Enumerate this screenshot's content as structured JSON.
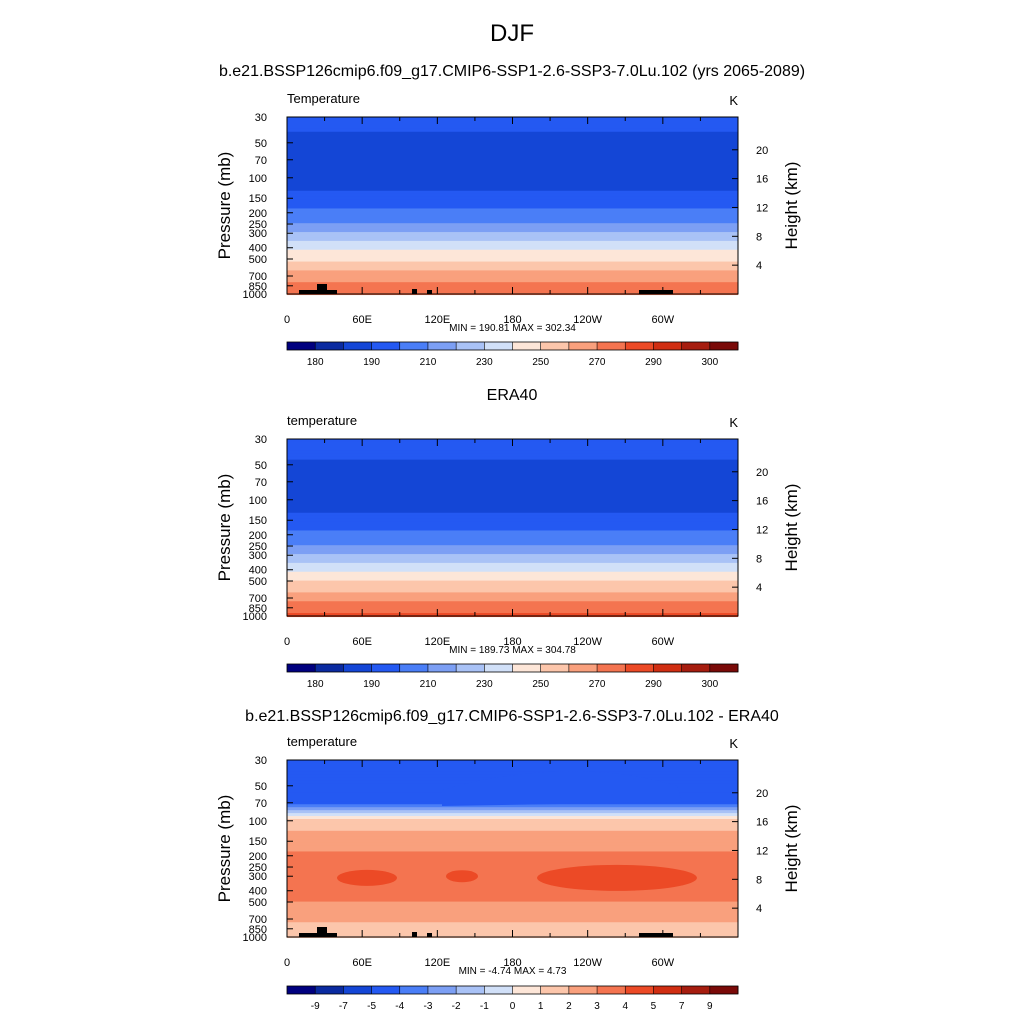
{
  "figure": {
    "title": "DJF"
  },
  "chart_data": [
    {
      "type": "heatmap",
      "title": "b.e21.BSSP126cmip6.f09_g17.CMIP6-SSP1-2.6-SSP3-7.0Lu.102 (yrs 2065-2089)",
      "left_label": "Temperature",
      "units": "K",
      "ylabel": "Pressure (mb)",
      "y2label": "Height (km)",
      "y_ticks": [
        "30",
        "50",
        "70",
        "100",
        "150",
        "200",
        "250",
        "300",
        "400",
        "500",
        "700",
        "850",
        "1000"
      ],
      "y2_ticks": [
        "20",
        "16",
        "12",
        "8",
        "4"
      ],
      "x_ticks": [
        "0",
        "60E",
        "120E",
        "180",
        "120W",
        "60W"
      ],
      "stats": "MIN = 190.81  MAX = 302.34",
      "colorbar_labels": [
        "180",
        "190",
        "210",
        "230",
        "250",
        "270",
        "290",
        "300"
      ],
      "profile_K": [
        205,
        196,
        194,
        196,
        203,
        212,
        222,
        230,
        248,
        258,
        276,
        284,
        291
      ],
      "topography": true
    },
    {
      "type": "heatmap",
      "title": "ERA40",
      "left_label": "temperature",
      "units": "K",
      "ylabel": "Pressure (mb)",
      "y2label": "Height (km)",
      "y_ticks": [
        "30",
        "50",
        "70",
        "100",
        "150",
        "200",
        "250",
        "300",
        "400",
        "500",
        "700",
        "850",
        "1000"
      ],
      "y2_ticks": [
        "20",
        "16",
        "12",
        "8",
        "4"
      ],
      "x_ticks": [
        "0",
        "60E",
        "120E",
        "180",
        "120W",
        "60W"
      ],
      "stats": "MIN = 189.73  MAX = 304.78",
      "colorbar_labels": [
        "180",
        "190",
        "210",
        "230",
        "250",
        "270",
        "290",
        "300"
      ],
      "profile_K": [
        207,
        198,
        194,
        195,
        203,
        212,
        222,
        231,
        249,
        259,
        277,
        285,
        293
      ],
      "topography": false
    },
    {
      "type": "heatmap",
      "title": "b.e21.BSSP126cmip6.f09_g17.CMIP6-SSP1-2.6-SSP3-7.0Lu.102 - ERA40",
      "left_label": "temperature",
      "units": "K",
      "ylabel": "Pressure (mb)",
      "y2label": "Height (km)",
      "y_ticks": [
        "30",
        "50",
        "70",
        "100",
        "150",
        "200",
        "250",
        "300",
        "400",
        "500",
        "700",
        "850",
        "1000"
      ],
      "y2_ticks": [
        "20",
        "16",
        "12",
        "8",
        "4"
      ],
      "x_ticks": [
        "0",
        "60E",
        "120E",
        "180",
        "120W",
        "60W"
      ],
      "stats": "MIN =  -4.74  MAX =   4.73",
      "colorbar_labels": [
        "-9",
        "-7",
        "-5",
        "-4",
        "-3",
        "-2",
        "-1",
        "0",
        "1",
        "2",
        "3",
        "4",
        "5",
        "7",
        "9"
      ],
      "profile_K": [
        -4.2,
        -4.6,
        -4.2,
        1.4,
        2.5,
        3.2,
        3.6,
        3.8,
        3.5,
        3.0,
        2.2,
        1.6,
        1.2
      ],
      "topography": true
    }
  ],
  "colors": {
    "temperature_scale": [
      "#00007f",
      "#0a2aa0",
      "#1446d6",
      "#2459f2",
      "#4a7ef7",
      "#7c9ff4",
      "#a9c2f6",
      "#d1e0f8",
      "#fde6d8",
      "#fcc6ab",
      "#f9a07d",
      "#f47450",
      "#ec4a26",
      "#d02e12",
      "#a61d0f",
      "#7a0a08"
    ],
    "difference_scale": [
      "#00007f",
      "#0a2aa0",
      "#1446d6",
      "#2459f2",
      "#4a7ef7",
      "#7c9ff4",
      "#a9c2f6",
      "#d1e0f8",
      "#fde6d8",
      "#fcc6ab",
      "#f9a07d",
      "#f47450",
      "#ec4a26",
      "#d02e12",
      "#a61d0f",
      "#7a0a08"
    ],
    "topography": "#000000"
  }
}
